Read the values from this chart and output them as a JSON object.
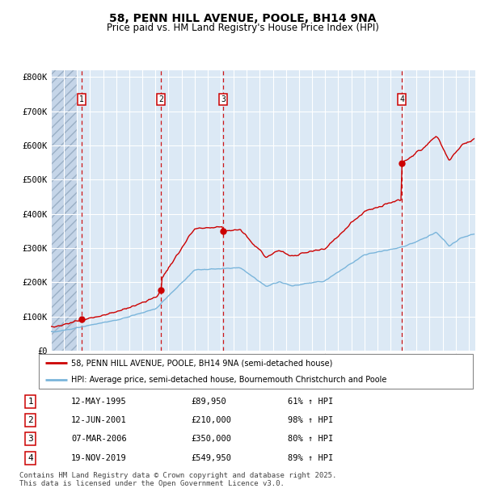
{
  "title": "58, PENN HILL AVENUE, POOLE, BH14 9NA",
  "subtitle": "Price paid vs. HM Land Registry's House Price Index (HPI)",
  "title_fontsize": 10,
  "subtitle_fontsize": 8.5,
  "transactions": [
    {
      "num": 1,
      "date_label": "12-MAY-1995",
      "price": 89950,
      "pct": "61%",
      "x_year": 1995.36
    },
    {
      "num": 2,
      "date_label": "12-JUN-2001",
      "price": 210000,
      "pct": "98%",
      "x_year": 2001.44
    },
    {
      "num": 3,
      "date_label": "07-MAR-2006",
      "price": 350000,
      "pct": "80%",
      "x_year": 2006.18
    },
    {
      "num": 4,
      "date_label": "19-NOV-2019",
      "price": 549950,
      "pct": "89%",
      "x_year": 2019.88
    }
  ],
  "hpi_color": "#7ab5db",
  "price_color": "#cc0000",
  "dashed_line_color": "#cc0000",
  "plot_bg": "#dce9f5",
  "hatch_color": "#aab8ca",
  "grid_color": "#ffffff",
  "ylim": [
    0,
    820000
  ],
  "yticks": [
    0,
    100000,
    200000,
    300000,
    400000,
    500000,
    600000,
    700000,
    800000
  ],
  "ytick_labels": [
    "£0",
    "£100K",
    "£200K",
    "£300K",
    "£400K",
    "£500K",
    "£600K",
    "£700K",
    "£800K"
  ],
  "xlim_start": 1993.0,
  "xlim_end": 2025.5,
  "legend_line1": "58, PENN HILL AVENUE, POOLE, BH14 9NA (semi-detached house)",
  "legend_line2": "HPI: Average price, semi-detached house, Bournemouth Christchurch and Poole",
  "footer": "Contains HM Land Registry data © Crown copyright and database right 2025.\nThis data is licensed under the Open Government Licence v3.0.",
  "footer_fontsize": 6.5,
  "table_rows": [
    [
      "1",
      "12-MAY-1995",
      "£89,950",
      "61% ↑ HPI"
    ],
    [
      "2",
      "12-JUN-2001",
      "£210,000",
      "98% ↑ HPI"
    ],
    [
      "3",
      "07-MAR-2006",
      "£350,000",
      "80% ↑ HPI"
    ],
    [
      "4",
      "19-NOV-2019",
      "£549,950",
      "89% ↑ HPI"
    ]
  ]
}
